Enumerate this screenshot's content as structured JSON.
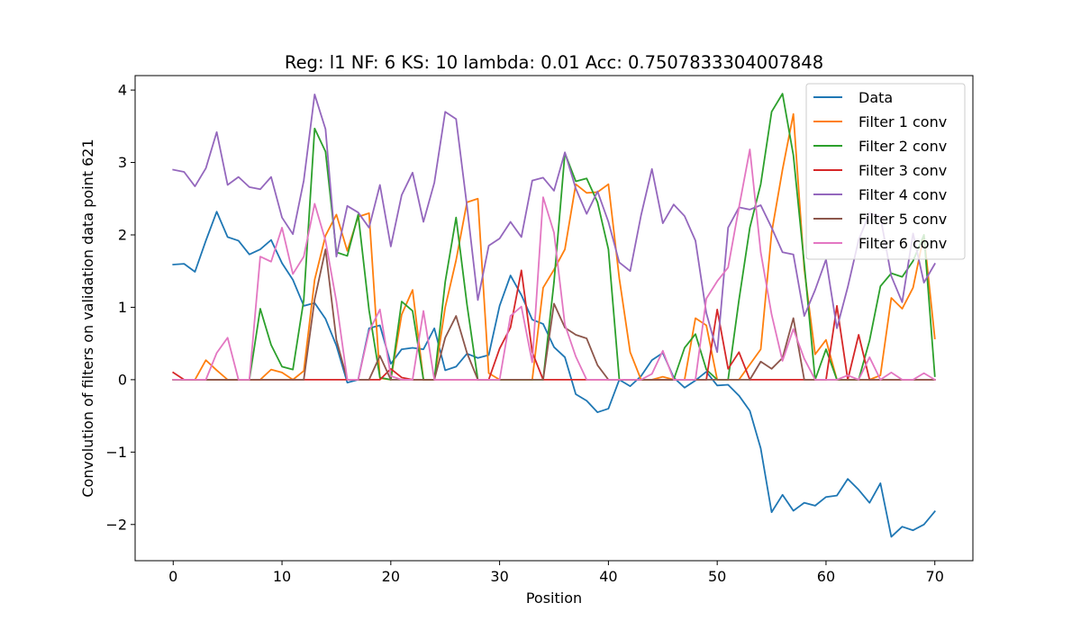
{
  "chart_data": {
    "type": "line",
    "title": "Reg: l1  NF: 6  KS: 10  lambda: 0.01 Acc: 0.7507833304007848",
    "xlabel": "Position",
    "ylabel": "Convolution of filters on validation data point 621",
    "xlim": [
      -3.5,
      73.5
    ],
    "ylim": [
      -2.5,
      4.2
    ],
    "xticks": [
      0,
      10,
      20,
      30,
      40,
      50,
      60,
      70
    ],
    "xtick_labels": [
      "0",
      "10",
      "20",
      "30",
      "40",
      "50",
      "60",
      "70"
    ],
    "yticks": [
      -2,
      -1,
      0,
      1,
      2,
      3,
      4
    ],
    "ytick_labels": [
      "−2",
      "−1",
      "0",
      "1",
      "2",
      "3",
      "4"
    ],
    "grid": false,
    "legend_position": "top-right",
    "x": [
      0,
      1,
      2,
      3,
      4,
      5,
      6,
      7,
      8,
      9,
      10,
      11,
      12,
      13,
      14,
      15,
      16,
      17,
      18,
      19,
      20,
      21,
      22,
      23,
      24,
      25,
      26,
      27,
      28,
      29,
      30,
      31,
      32,
      33,
      34,
      35,
      36,
      37,
      38,
      39,
      40,
      41,
      42,
      43,
      44,
      45,
      46,
      47,
      48,
      49,
      50,
      51,
      52,
      53,
      54,
      55,
      56,
      57,
      58,
      59,
      60,
      61,
      62,
      63,
      64,
      65,
      66,
      67,
      68,
      69,
      70
    ],
    "series": [
      {
        "name": "Data",
        "color": "#1f77b4",
        "values": [
          1.59,
          1.6,
          1.49,
          1.92,
          2.32,
          1.97,
          1.92,
          1.73,
          1.8,
          1.93,
          1.61,
          1.38,
          1.02,
          1.06,
          0.84,
          0.47,
          -0.04,
          0.0,
          0.71,
          0.75,
          0.22,
          0.42,
          0.44,
          0.42,
          0.71,
          0.13,
          0.18,
          0.36,
          0.3,
          0.34,
          1.02,
          1.44,
          1.17,
          0.83,
          0.77,
          0.45,
          0.31,
          -0.2,
          -0.29,
          -0.45,
          -0.4,
          0.0,
          -0.09,
          0.05,
          0.27,
          0.37,
          0.03,
          -0.11,
          -0.01,
          0.11,
          -0.08,
          -0.07,
          -0.22,
          -0.43,
          -0.95,
          -1.83,
          -1.59,
          -1.81,
          -1.7,
          -1.74,
          -1.62,
          -1.6,
          -1.37,
          -1.52,
          -1.7,
          -1.43,
          -2.17,
          -2.03,
          -2.08,
          -2.0,
          -1.82
        ]
      },
      {
        "name": "Filter 1 conv",
        "color": "#ff7f0e",
        "values": [
          0,
          0,
          0,
          0.27,
          0.13,
          0,
          0,
          0,
          0,
          0.14,
          0.1,
          0,
          0.12,
          1.38,
          1.99,
          2.28,
          1.78,
          2.25,
          2.3,
          0.02,
          0,
          0.9,
          1.24,
          0,
          0,
          1.0,
          1.65,
          2.45,
          2.5,
          0.09,
          0,
          0,
          0,
          0,
          1.27,
          1.52,
          1.8,
          2.7,
          2.58,
          2.59,
          2.7,
          1.4,
          0.38,
          0,
          0,
          0.04,
          0,
          0,
          0.85,
          0.75,
          0,
          0,
          0,
          0.21,
          0.42,
          2.03,
          2.9,
          3.67,
          1.53,
          0.35,
          0.55,
          0,
          0,
          0,
          0,
          0.06,
          1.13,
          0.98,
          1.27,
          2.0,
          0.57
        ]
      },
      {
        "name": "Filter 2 conv",
        "color": "#2ca02c",
        "values": [
          0,
          0,
          0,
          0,
          0,
          0,
          0,
          0,
          0.98,
          0.48,
          0.18,
          0.14,
          1.1,
          3.47,
          3.15,
          1.76,
          1.71,
          2.28,
          0.96,
          0.03,
          0,
          1.08,
          0.95,
          0,
          0,
          1.35,
          2.24,
          1.04,
          0,
          0,
          0,
          0,
          0,
          0,
          0,
          1.35,
          3.13,
          2.74,
          2.78,
          2.45,
          1.8,
          0,
          0,
          0,
          0,
          0,
          0,
          0.44,
          0.63,
          0.14,
          0,
          0,
          1.1,
          2.1,
          2.7,
          3.7,
          3.95,
          3.1,
          1.6,
          0,
          0.42,
          0,
          0,
          0,
          0.54,
          1.29,
          1.47,
          1.42,
          1.64,
          2.0,
          0.05
        ]
      },
      {
        "name": "Filter 3 conv",
        "color": "#d62728",
        "values": [
          0.1,
          0,
          0,
          0,
          0,
          0,
          0,
          0,
          0,
          0,
          0,
          0,
          0,
          0,
          0,
          0,
          0,
          0,
          0,
          0,
          0.15,
          0.03,
          0,
          0,
          0,
          0,
          0,
          0,
          0,
          0,
          0.43,
          0.72,
          1.51,
          0.38,
          0,
          0,
          0,
          0,
          0,
          0,
          0,
          0,
          0,
          0,
          0,
          0,
          0,
          0,
          0,
          0,
          0.97,
          0.15,
          0.38,
          0,
          0,
          0,
          0,
          0,
          0,
          0,
          0,
          1.02,
          0,
          0.62,
          0,
          0,
          0,
          0,
          0,
          0,
          0
        ]
      },
      {
        "name": "Filter 4 conv",
        "color": "#9467bd",
        "values": [
          2.9,
          2.87,
          2.67,
          2.92,
          3.42,
          2.69,
          2.8,
          2.66,
          2.63,
          2.8,
          2.24,
          2.01,
          2.75,
          3.94,
          3.46,
          1.7,
          2.4,
          2.31,
          2.1,
          2.69,
          1.84,
          2.55,
          2.86,
          2.18,
          2.72,
          3.7,
          3.6,
          2.4,
          1.1,
          1.85,
          1.95,
          2.18,
          1.97,
          2.75,
          2.79,
          2.61,
          3.14,
          2.64,
          2.29,
          2.6,
          2.18,
          1.62,
          1.5,
          2.27,
          2.91,
          2.16,
          2.42,
          2.26,
          1.92,
          0.92,
          0.38,
          2.1,
          2.38,
          2.35,
          2.41,
          2.1,
          1.76,
          1.73,
          0.88,
          1.24,
          1.66,
          0.71,
          1.28,
          1.93,
          2.3,
          2.25,
          1.43,
          1.07,
          2.02,
          1.34,
          1.6
        ]
      },
      {
        "name": "Filter 5 conv",
        "color": "#8c564b",
        "values": [
          0,
          0,
          0,
          0,
          0,
          0,
          0,
          0,
          0,
          0,
          0,
          0,
          0,
          1.11,
          1.8,
          0.55,
          0,
          0,
          0,
          0.33,
          0,
          0,
          0,
          0,
          0,
          0.58,
          0.88,
          0.37,
          0,
          0,
          0,
          0,
          0,
          0,
          0,
          1.05,
          0.72,
          0.62,
          0.57,
          0.2,
          0,
          0,
          0,
          0,
          0,
          0,
          0,
          0,
          0,
          0,
          0,
          0,
          0,
          0,
          0.25,
          0.15,
          0.3,
          0.85,
          0,
          0,
          0,
          0,
          0,
          0,
          0,
          0,
          0,
          0,
          0,
          0,
          0
        ]
      },
      {
        "name": "Filter 6 conv",
        "color": "#e377c2",
        "values": [
          0,
          0,
          0,
          0,
          0.37,
          0.58,
          0,
          0,
          1.7,
          1.63,
          2.1,
          1.46,
          1.7,
          2.43,
          1.92,
          1.08,
          0,
          0,
          0.67,
          0.97,
          0.05,
          0,
          0,
          0.95,
          0,
          0,
          0,
          0,
          0,
          0,
          0,
          0.88,
          1.01,
          0.24,
          2.52,
          2.03,
          0.76,
          0.32,
          0,
          0,
          0,
          0,
          0,
          0,
          0.08,
          0.4,
          0,
          0,
          0,
          1.12,
          1.36,
          1.55,
          2.38,
          3.18,
          1.76,
          0.9,
          0.26,
          0.7,
          0.29,
          0,
          0,
          0,
          0.06,
          0,
          0.31,
          0,
          0.1,
          0,
          0,
          0.09,
          0
        ]
      }
    ]
  }
}
